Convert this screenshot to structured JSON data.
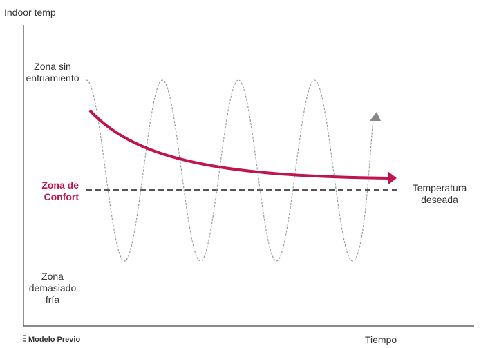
{
  "yaxis_label": "Indoor temp",
  "xaxis_label": "Tiempo",
  "zones": {
    "no_cooling": [
      "Zona sin",
      "enfriamiento"
    ],
    "comfort": [
      "Zona de",
      "Confort"
    ],
    "too_cold": [
      "Zona",
      "demasiado",
      "fría"
    ]
  },
  "target": [
    "Temperatura",
    "deseada"
  ],
  "legend": {
    "label": "Modelo Previo"
  },
  "colors": {
    "accent": "#c0144a",
    "dashed": "#555555",
    "wave": "#999999",
    "axis": "#333333"
  }
}
